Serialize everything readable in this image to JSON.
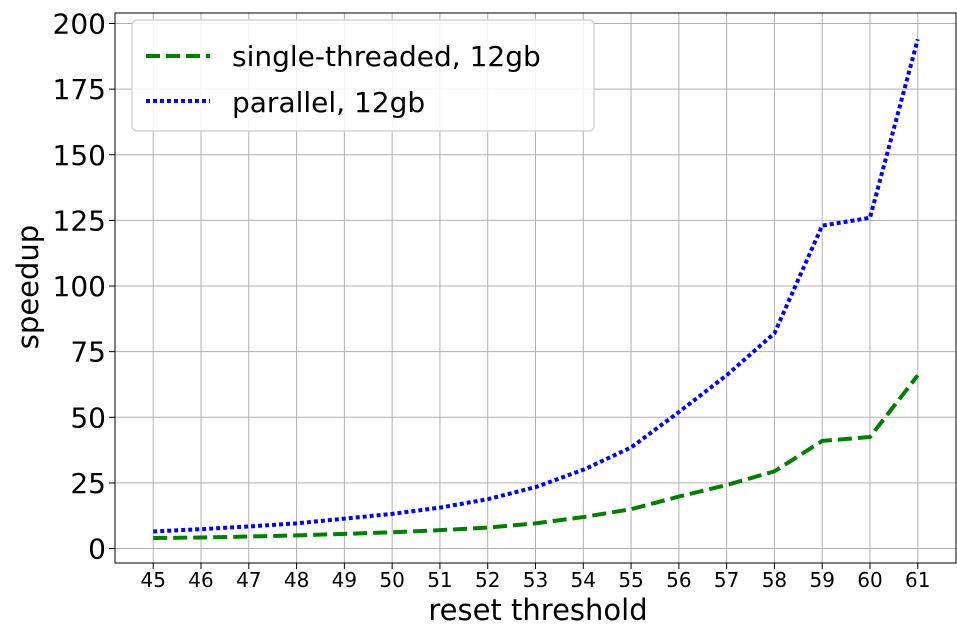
{
  "chart_data": {
    "type": "line",
    "xlabel": "reset threshold",
    "ylabel": "speedup",
    "x": [
      45,
      46,
      47,
      48,
      49,
      50,
      51,
      52,
      53,
      54,
      55,
      56,
      57,
      58,
      59,
      60,
      61
    ],
    "xlim": [
      44.2,
      61.8
    ],
    "ylim": [
      -5.5,
      204
    ],
    "yticks": [
      0,
      25,
      50,
      75,
      100,
      125,
      150,
      175,
      200
    ],
    "grid": true,
    "legend_position": "top-left",
    "series": [
      {
        "name": "single-threaded, 12gb",
        "color": "#008000",
        "style": "dashed",
        "values": [
          4,
          4.2,
          4.6,
          5,
          5.6,
          6.2,
          7,
          8,
          9.6,
          12,
          15,
          19.8,
          24.2,
          29.4,
          41,
          42.5,
          66
        ]
      },
      {
        "name": "parallel, 12gb",
        "color": "#0000ff",
        "style": "dotted",
        "values": [
          6.5,
          7.4,
          8.4,
          9.6,
          11.4,
          13.2,
          15.6,
          18.8,
          23.4,
          30,
          38.5,
          52,
          66,
          82,
          123,
          126,
          194
        ]
      }
    ]
  }
}
